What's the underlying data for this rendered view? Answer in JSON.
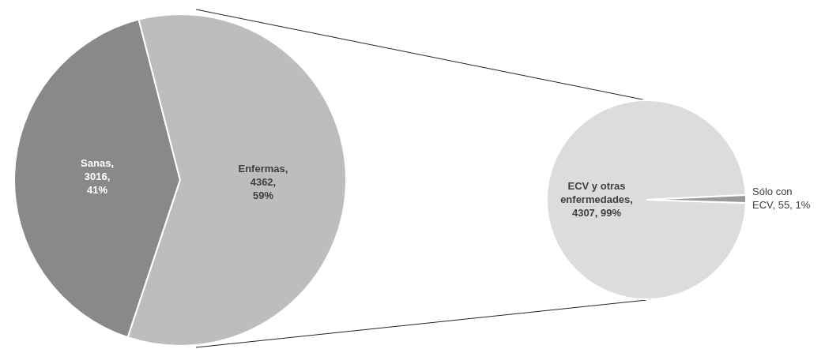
{
  "chart_data": [
    {
      "type": "pie",
      "categories": [
        "Sanas",
        "Enfermas"
      ],
      "values": [
        3016,
        4362
      ],
      "colors": [
        "#898989",
        "#bdbdbd"
      ],
      "value_labels": [
        ", 3016, 41%",
        ", 4362, 59%"
      ]
    },
    {
      "type": "pie",
      "categories": [
        "ECV y otras enfermedades",
        "Sólo con ECV"
      ],
      "values": [
        4307,
        55
      ],
      "colors": [
        "#dcdcdc",
        "#9a9a9a"
      ],
      "value_labels": [
        ", 4307, 99%",
        ", 55, 1%"
      ]
    }
  ]
}
